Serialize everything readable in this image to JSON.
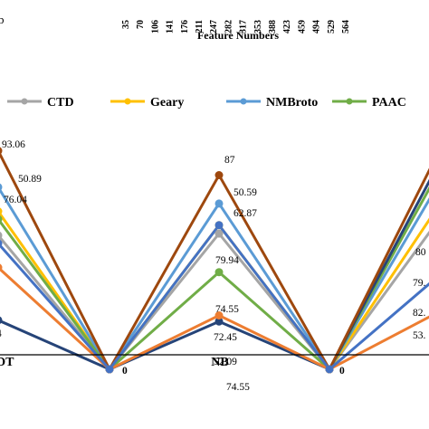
{
  "chart_data": {
    "type": "line",
    "xlabel": "Feature Numbers",
    "feature_ticks": [
      "35",
      "70",
      "106",
      "141",
      "176",
      "211",
      "247",
      "282",
      "317",
      "353",
      "388",
      "423",
      "459",
      "494",
      "529",
      "564"
    ],
    "side_label": "b",
    "categories": [
      "DT",
      "",
      "NB",
      "",
      ""
    ],
    "legend_position": "top",
    "series": [
      {
        "name": "CTD",
        "color": "#a5a5a5",
        "values": [
          72,
          0,
          72.45,
          0,
          76
        ]
      },
      {
        "name": "Geary",
        "color": "#ffc000",
        "values": [
          78,
          0,
          74.55,
          0,
          79.5
        ]
      },
      {
        "name": "NMBroto",
        "color": "#5b9bd5",
        "values": [
          84,
          0,
          79.94,
          0,
          85
        ]
      },
      {
        "name": "PAAC",
        "color": "#70ad47",
        "values": [
          76.04,
          0,
          62.87,
          0,
          88
        ]
      },
      {
        "name": "",
        "color": "#264478",
        "values": [
          50.89,
          0,
          50.59,
          0,
          90
        ]
      },
      {
        "name": "",
        "color": "#9e480e",
        "values": [
          93.06,
          0,
          87,
          0,
          93
        ]
      },
      {
        "name": "",
        "color": "#ed7d31",
        "values": [
          64,
          0,
          52.09,
          0,
          53
        ]
      },
      {
        "name": "",
        "color": "#4472c4",
        "values": [
          70,
          0,
          74.55,
          0,
          62
        ]
      }
    ],
    "data_labels": {
      "DT": [
        "93.06",
        "50.89",
        "76.04",
        "4"
      ],
      "NB": [
        "87",
        "50.59",
        "62.87",
        "79.94",
        "74.55",
        "72.45",
        "52.09",
        "74.55"
      ],
      "zero": [
        "0",
        "0"
      ],
      "right_partial": [
        "80",
        "79.",
        "82.",
        "53."
      ]
    },
    "grid": false
  }
}
